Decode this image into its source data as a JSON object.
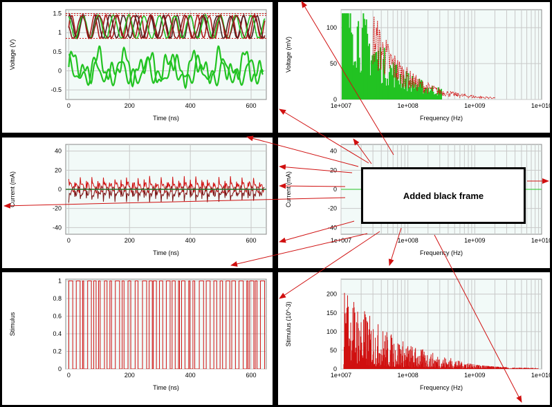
{
  "colors": {
    "green": "#22c322",
    "red": "#d01010",
    "darkred": "#7a1010",
    "plot_bg": "#f2faf8",
    "grid": "#c8c8c8"
  },
  "callout": {
    "label": "Added black frame"
  },
  "chart_data": [
    {
      "id": "voltage-time",
      "type": "line",
      "xlabel": "Time (ns)",
      "ylabel": "Voltage (V)",
      "xlim": [
        -10,
        650
      ],
      "ylim": [
        -0.75,
        1.6
      ],
      "xticks": [
        0,
        200,
        400,
        600
      ],
      "yticks": [
        -0.5,
        0,
        0.5,
        1,
        1.5
      ],
      "ytick_labels": [
        "-0.5",
        "0",
        "0.5",
        "1",
        "1.5"
      ],
      "series": [
        {
          "values": "green trace oscillating -0.7 to 0.65"
        },
        {
          "values": "red/green traces 0.85 to 1.5"
        }
      ]
    },
    {
      "id": "voltage-freq",
      "type": "bar",
      "xlabel": "Frequency (Hz)",
      "ylabel": "Voltage (mV)",
      "xscale": "log",
      "xlim": [
        10000000,
        10000000000
      ],
      "ylim": [
        0,
        125
      ],
      "xtick_labels": [
        "1e+007",
        "1e+008",
        "1e+009",
        "1e+010"
      ],
      "yticks": [
        0,
        50,
        100
      ],
      "ytick_labels": [
        "0",
        "50",
        "100"
      ]
    },
    {
      "id": "current-time",
      "type": "line",
      "xlabel": "Time (ns)",
      "ylabel": "Current (mA)",
      "xlim": [
        -10,
        650
      ],
      "ylim": [
        -47,
        47
      ],
      "xticks": [
        0,
        200,
        400,
        600
      ],
      "yticks": [
        -40,
        -20,
        0,
        20,
        40
      ],
      "ytick_labels": [
        "-40",
        "-20",
        "0",
        "20",
        "40"
      ]
    },
    {
      "id": "current-freq",
      "type": "line",
      "xlabel": "Frequency (Hz)",
      "ylabel": "Current (mA)",
      "xscale": "log",
      "xlim": [
        10000000,
        10000000000
      ],
      "ylim": [
        -47,
        47
      ],
      "xtick_labels": [
        "1e+007",
        "1e+008",
        "1e+009",
        "1e+010"
      ],
      "yticks": [
        -40,
        -20,
        0,
        20,
        40
      ],
      "ytick_labels": [
        "-40",
        "-20",
        "0",
        "20",
        "40"
      ]
    },
    {
      "id": "stimulus-time",
      "type": "line",
      "xlabel": "Time (ns)",
      "ylabel": "Stimulus",
      "xlim": [
        -10,
        650
      ],
      "ylim": [
        0,
        1.02
      ],
      "xticks": [
        0,
        200,
        400,
        600
      ],
      "yticks": [
        0,
        0.2,
        0.4,
        0.6,
        0.8,
        1
      ],
      "ytick_labels": [
        "0",
        "0.2",
        "0.4",
        "0.6",
        "0.8",
        "1"
      ]
    },
    {
      "id": "stimulus-freq",
      "type": "bar",
      "xlabel": "Frequency (Hz)",
      "ylabel": "Stimulus (10^-3)",
      "xscale": "log",
      "xlim": [
        10000000,
        10000000000
      ],
      "ylim": [
        0,
        240
      ],
      "xtick_labels": [
        "1e+007",
        "1e+008",
        "1e+009",
        "1e+010"
      ],
      "yticks": [
        0,
        50,
        100,
        150,
        200
      ],
      "ytick_labels": [
        "0",
        "50",
        "100",
        "150",
        "200"
      ]
    }
  ]
}
